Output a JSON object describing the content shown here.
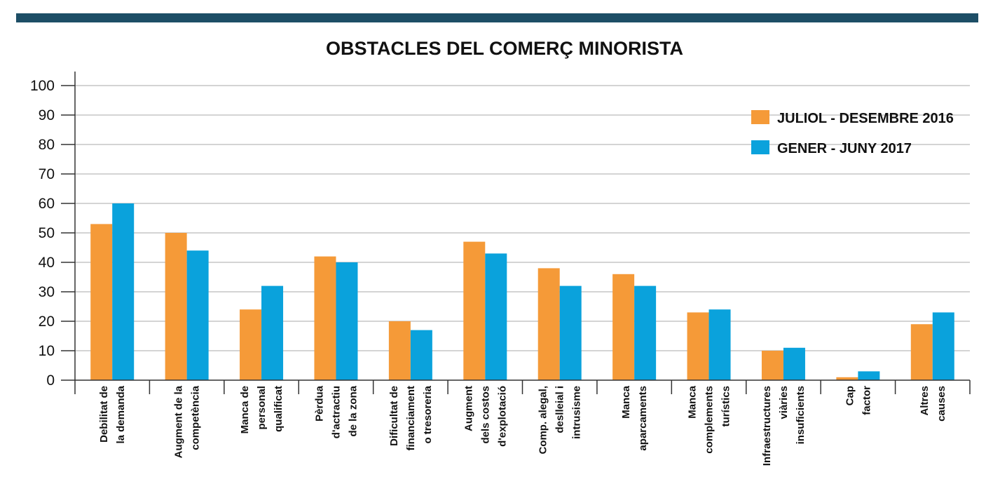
{
  "colors": {
    "band": "#1d4e66",
    "series_2016": "#f59a38",
    "series_2017": "#0aa2dc",
    "grid": "#aaaaaa",
    "axis": "#333333"
  },
  "chart_data": {
    "type": "bar",
    "title": "OBSTACLES DEL COMERÇ MINORISTA",
    "xlabel": "",
    "ylabel": "",
    "ylim": [
      0,
      100
    ],
    "yticks": [
      "0",
      "10",
      "20",
      "30",
      "40",
      "50",
      "60",
      "70",
      "80",
      "90",
      "100"
    ],
    "grid": true,
    "legend_position": "top-right",
    "categories": [
      [
        "Debilitat de",
        "la demanda"
      ],
      [
        "Augment de la",
        "competència"
      ],
      [
        "Manca de",
        "personal",
        "qualificat"
      ],
      [
        "Pèrdua",
        "d'actractiu",
        "de la zona"
      ],
      [
        "Dificultat de",
        "financiament",
        "o tresoreria"
      ],
      [
        "Augment",
        "dels costos",
        "d'explotació"
      ],
      [
        "Comp. alegal,",
        "deslleial i",
        "intrusisme"
      ],
      [
        "Manca",
        "aparcaments"
      ],
      [
        "Manca",
        "complements",
        "turístics"
      ],
      [
        "Infraestructures",
        "viàries",
        "insuficients"
      ],
      [
        "Cap",
        "factor"
      ],
      [
        "Altres",
        "causes"
      ]
    ],
    "series": [
      {
        "name": "JULIOL - DESEMBRE 2016",
        "values": [
          53,
          50,
          24,
          42,
          20,
          47,
          38,
          36,
          23,
          10,
          1,
          19
        ]
      },
      {
        "name": "GENER - JUNY 2017",
        "values": [
          60,
          44,
          32,
          40,
          17,
          43,
          32,
          32,
          24,
          11,
          3,
          23
        ]
      }
    ]
  }
}
